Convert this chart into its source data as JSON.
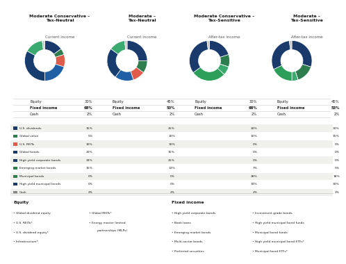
{
  "titles": [
    "Moderate Conservative –\nTax-Neutral",
    "Moderate –\nTax-Neutral",
    "Moderate Conservative –\nTax-Sensitive",
    "Moderate –\nTax-Sensitive"
  ],
  "subtitles": [
    "Current income",
    "Current income",
    "After-tax income",
    "After-tax income"
  ],
  "equity_pcts": [
    30,
    45,
    30,
    45
  ],
  "fixed_income_pcts": [
    68,
    53,
    68,
    53
  ],
  "cash_pcts": [
    2,
    2,
    2,
    2
  ],
  "pie_data": [
    [
      15,
      5,
      10,
      20,
      33,
      15,
      0,
      0,
      2
    ],
    [
      25,
      10,
      10,
      15,
      25,
      13,
      0,
      0,
      2
    ],
    [
      20,
      10,
      0,
      0,
      0,
      7,
      28,
      33,
      2
    ],
    [
      30,
      15,
      0,
      0,
      0,
      5,
      18,
      30,
      2
    ]
  ],
  "pie_colors": [
    "#1a3a6b",
    "#2e7d4f",
    "#e05c4a",
    "#1a3a6b",
    "#1a3a6b",
    "#2e7d4f",
    "#2e7d4f",
    "#1a3a6b",
    "#c8c8c8"
  ],
  "row_labels": [
    "U.S. dividends",
    "Global value",
    "U.S. REITs",
    "Global bonds",
    "High yield corporate bonds",
    "Emerging market bonds",
    "Municipal bonds",
    "High yield municipal bonds",
    "Cash"
  ],
  "row_colors": [
    "#1a3a6b",
    "#2e7d4f",
    "#e05c4a",
    "#1a3a6b",
    "#1a3a6b",
    "#2e7d4f",
    "#2e7d4f",
    "#1a3a6b",
    "#888888"
  ],
  "table_data": [
    [
      15,
      25,
      20,
      30
    ],
    [
      5,
      10,
      10,
      15
    ],
    [
      10,
      10,
      0,
      0
    ],
    [
      20,
      15,
      0,
      0
    ],
    [
      33,
      25,
      0,
      0
    ],
    [
      15,
      13,
      7,
      5
    ],
    [
      0,
      0,
      28,
      18
    ],
    [
      0,
      0,
      33,
      30
    ],
    [
      2,
      2,
      2,
      2
    ]
  ],
  "equity_section_title": "Equity",
  "fixed_income_section_title": "Fixed income",
  "equity_items_col1": [
    "Global dividend equity",
    "U.S. REITs*",
    "U.S. dividend equity*",
    "Infrastructure*"
  ],
  "equity_items_col2": [
    "Global REITs*",
    "Energy master limited\npartnerships (MLPs)"
  ],
  "fixed_items_col1": [
    "High yield corporate bonds",
    "Bank loans",
    "Emerging market bonds",
    "Multi-sector bonds",
    "Preferred securities"
  ],
  "fixed_items_col2": [
    "Investment grade bonds",
    "High yield municipal bond funds",
    "Municipal bond funds",
    "High yield municipal bond ETFs*",
    "Municipal bond ETFs*"
  ],
  "bg_color": "#f5f5f0",
  "table_alt_color": "#ebebeb"
}
